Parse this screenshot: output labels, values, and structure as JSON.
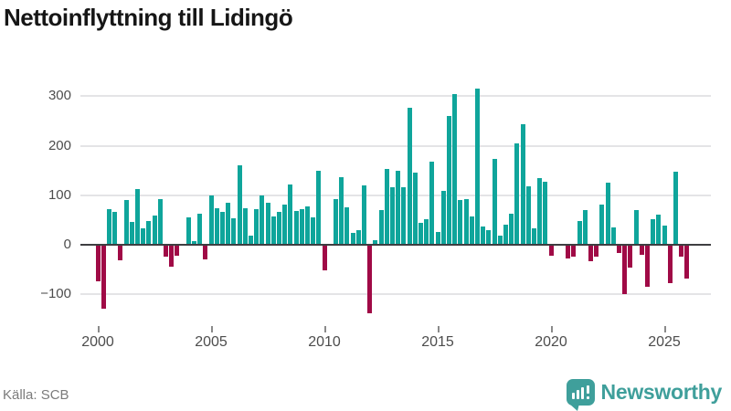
{
  "header": {
    "title": "Nettoinflyttning till Lidingö"
  },
  "footer": {
    "source": "Källa: SCB",
    "brand": "Newsworthy",
    "logo_icon": "bar-chart-speech-bubble-icon"
  },
  "chart_data": {
    "type": "bar",
    "title": "Nettoinflyttning till Lidingö",
    "xlabel": "",
    "ylabel": "",
    "grid": "horizontal",
    "legend": "none",
    "ylim": [
      -150,
      320
    ],
    "colors": {
      "positive": "#0fa59b",
      "negative": "#a00a46"
    },
    "xticks": [
      "2000",
      "2005",
      "2010",
      "2015",
      "2020",
      "2025"
    ],
    "yticks": [
      300,
      200,
      100,
      0,
      -100
    ],
    "ytick_labels": [
      "300",
      "200",
      "100",
      "0",
      "−100"
    ],
    "x": [
      "2000Q1",
      "2000Q2",
      "2000Q3",
      "2000Q4",
      "2001Q1",
      "2001Q2",
      "2001Q3",
      "2001Q4",
      "2002Q1",
      "2002Q2",
      "2002Q3",
      "2002Q4",
      "2003Q1",
      "2003Q2",
      "2003Q3",
      "2003Q4",
      "2004Q1",
      "2004Q2",
      "2004Q3",
      "2004Q4",
      "2005Q1",
      "2005Q2",
      "2005Q3",
      "2005Q4",
      "2006Q1",
      "2006Q2",
      "2006Q3",
      "2006Q4",
      "2007Q1",
      "2007Q2",
      "2007Q3",
      "2007Q4",
      "2008Q1",
      "2008Q2",
      "2008Q3",
      "2008Q4",
      "2009Q1",
      "2009Q2",
      "2009Q3",
      "2009Q4",
      "2010Q1",
      "2010Q2",
      "2010Q3",
      "2010Q4",
      "2011Q1",
      "2011Q2",
      "2011Q3",
      "2011Q4",
      "2012Q1",
      "2012Q2",
      "2012Q3",
      "2012Q4",
      "2013Q1",
      "2013Q2",
      "2013Q3",
      "2013Q4",
      "2014Q1",
      "2014Q2",
      "2014Q3",
      "2014Q4",
      "2015Q1",
      "2015Q2",
      "2015Q3",
      "2015Q4",
      "2016Q1",
      "2016Q2",
      "2016Q3",
      "2016Q4",
      "2017Q1",
      "2017Q2",
      "2017Q3",
      "2017Q4",
      "2018Q1",
      "2018Q2",
      "2018Q3",
      "2018Q4",
      "2019Q1",
      "2019Q2",
      "2019Q3",
      "2019Q4",
      "2020Q1",
      "2020Q2",
      "2020Q3",
      "2020Q4",
      "2021Q1",
      "2021Q2",
      "2021Q3",
      "2021Q4",
      "2022Q1",
      "2022Q2",
      "2022Q3",
      "2022Q4",
      "2023Q1",
      "2023Q2",
      "2023Q3",
      "2023Q4",
      "2024Q1",
      "2024Q2",
      "2024Q3",
      "2024Q4",
      "2025Q1",
      "2025Q2",
      "2025Q3",
      "2025Q4",
      "2026Q1"
    ],
    "values": [
      -72,
      -128,
      72,
      66,
      -30,
      90,
      46,
      113,
      34,
      48,
      59,
      93,
      -23,
      -43,
      -21,
      0,
      55,
      8,
      62,
      -28,
      99,
      74,
      66,
      85,
      53,
      160,
      73,
      19,
      72,
      100,
      84,
      58,
      66,
      82,
      122,
      68,
      72,
      77,
      55,
      149,
      -49,
      0,
      92,
      136,
      75,
      24,
      29,
      120,
      -136,
      10,
      70,
      154,
      117,
      149,
      117,
      276,
      145,
      44,
      51,
      167,
      26,
      108,
      261,
      305,
      90,
      92,
      58,
      315,
      37,
      29,
      174,
      18,
      40,
      62,
      204,
      243,
      119,
      33,
      135,
      127,
      -21,
      0,
      0,
      -26,
      -22,
      48,
      70,
      -31,
      -23,
      82,
      125,
      35,
      -14,
      -97,
      -45,
      71,
      -18,
      -83,
      51,
      61,
      38,
      -76,
      148,
      -23,
      -67
    ]
  },
  "logo_colors": {
    "teal": "#3f9f9b"
  }
}
